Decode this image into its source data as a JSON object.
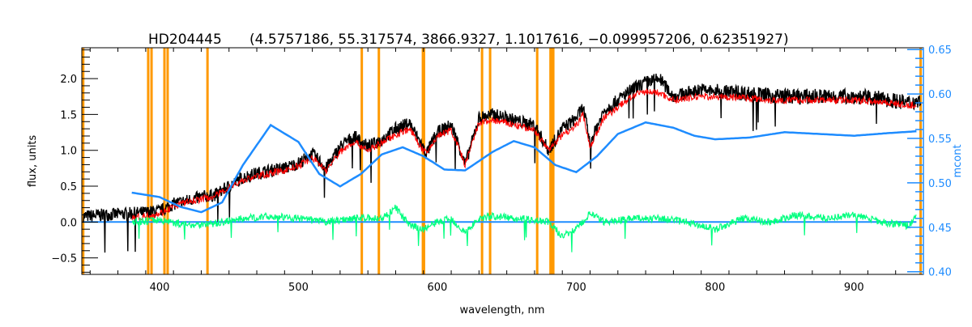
{
  "chart_data": {
    "type": "line",
    "title_star": "HD204445",
    "title_params": "(4.5757186, 55.317574, 3866.9327, 1.1017616, −0.099957206, 0.62351927)",
    "xlabel": "wavelength, nm",
    "ylabel": "flux, units",
    "y2label": "mcont",
    "xlim": [
      344,
      950
    ],
    "ylim": [
      -0.73,
      2.43
    ],
    "y2lim": [
      0.397,
      0.652
    ],
    "xticks": [
      400,
      500,
      600,
      700,
      800,
      900
    ],
    "yticks": [
      -0.5,
      0.0,
      0.5,
      1.0,
      1.5,
      2.0
    ],
    "ytick_labels": [
      "−0.5",
      "0.0",
      "0.5",
      "1.0",
      "1.5",
      "2.0"
    ],
    "y2ticks": [
      0.4,
      0.45,
      0.5,
      0.55,
      0.6,
      0.65
    ],
    "y2tick_labels": [
      "0.40",
      "0.45",
      "0.50",
      "0.55",
      "0.60",
      "0.65"
    ],
    "masked_lines_nm": [
      345,
      391.8,
      394.2,
      403.5,
      405.8,
      434.5,
      545.6,
      557.9,
      589.6,
      590.4,
      632.2,
      638.0,
      671.9,
      681.5,
      682.5,
      683.5,
      948
    ],
    "colors": {
      "observed": "#000000",
      "model": "#ff0000",
      "continuum": "#1e8cff",
      "residual": "#00ff7f",
      "mask": "#ff9900"
    },
    "series": [
      {
        "name": "observed",
        "axis": "left",
        "x": [
          345,
          360,
          380,
          400,
          410,
          420,
          430,
          440,
          450,
          460,
          470,
          480,
          490,
          500,
          510,
          520,
          530,
          540,
          550,
          560,
          570,
          580,
          588,
          592,
          600,
          610,
          615,
          620,
          630,
          640,
          650,
          660,
          670,
          680,
          690,
          700,
          705,
          710,
          720,
          730,
          740,
          750,
          760,
          770,
          780,
          790,
          800,
          820,
          840,
          860,
          880,
          900,
          920,
          940,
          948
        ],
        "y": [
          0.08,
          0.1,
          0.12,
          0.15,
          0.25,
          0.3,
          0.35,
          0.38,
          0.5,
          0.62,
          0.68,
          0.72,
          0.75,
          0.82,
          0.95,
          0.75,
          1.05,
          1.2,
          1.05,
          1.15,
          1.3,
          1.38,
          1.1,
          0.95,
          1.25,
          1.35,
          1.1,
          0.8,
          1.45,
          1.5,
          1.45,
          1.4,
          1.35,
          1.0,
          1.3,
          1.45,
          1.6,
          1.1,
          1.55,
          1.7,
          1.85,
          1.95,
          2.0,
          1.75,
          1.8,
          1.85,
          1.82,
          1.8,
          1.76,
          1.75,
          1.75,
          1.75,
          1.72,
          1.66,
          1.7
        ]
      },
      {
        "name": "model",
        "axis": "left",
        "x": [
          380,
          400,
          410,
          420,
          430,
          440,
          450,
          460,
          470,
          480,
          490,
          500,
          510,
          520,
          530,
          540,
          550,
          560,
          570,
          580,
          588,
          592,
          600,
          610,
          615,
          620,
          630,
          640,
          650,
          660,
          670,
          680,
          690,
          700,
          705,
          710,
          720,
          730,
          740,
          750,
          760,
          770,
          780,
          790,
          800,
          820,
          840,
          860,
          880,
          900,
          920,
          940,
          945
        ],
        "y": [
          0.05,
          0.12,
          0.22,
          0.28,
          0.32,
          0.36,
          0.48,
          0.58,
          0.64,
          0.68,
          0.72,
          0.78,
          0.9,
          0.72,
          0.98,
          1.12,
          1.0,
          1.1,
          1.22,
          1.3,
          1.05,
          0.95,
          1.2,
          1.28,
          1.05,
          0.8,
          1.38,
          1.42,
          1.38,
          1.33,
          1.28,
          1.0,
          1.22,
          1.35,
          1.5,
          1.05,
          1.45,
          1.6,
          1.75,
          1.82,
          1.8,
          1.7,
          1.72,
          1.76,
          1.74,
          1.74,
          1.7,
          1.7,
          1.7,
          1.7,
          1.68,
          1.62,
          1.65
        ]
      },
      {
        "name": "continuum",
        "axis": "right",
        "x": [
          380,
          400,
          415,
          430,
          445,
          460,
          480,
          500,
          515,
          530,
          545,
          560,
          575,
          590,
          605,
          620,
          640,
          655,
          670,
          685,
          700,
          715,
          730,
          750,
          770,
          785,
          800,
          825,
          850,
          875,
          900,
          925,
          945
        ],
        "y": [
          0.489,
          0.484,
          0.473,
          0.467,
          0.478,
          0.52,
          0.565,
          0.546,
          0.51,
          0.496,
          0.51,
          0.532,
          0.54,
          0.53,
          0.515,
          0.514,
          0.535,
          0.547,
          0.54,
          0.52,
          0.512,
          0.53,
          0.555,
          0.568,
          0.562,
          0.553,
          0.549,
          0.551,
          0.557,
          0.555,
          0.553,
          0.556,
          0.558
        ]
      },
      {
        "name": "zero",
        "axis": "left",
        "x": [
          345,
          945
        ],
        "y": [
          0.0,
          0.0
        ]
      },
      {
        "name": "residual",
        "axis": "left",
        "x": [
          380,
          400,
          420,
          440,
          460,
          480,
          500,
          520,
          540,
          560,
          570,
          580,
          590,
          600,
          610,
          620,
          630,
          640,
          660,
          680,
          690,
          700,
          710,
          720,
          740,
          760,
          780,
          800,
          820,
          840,
          860,
          880,
          900,
          920,
          940,
          945
        ],
        "y": [
          0.0,
          0.03,
          -0.04,
          -0.02,
          0.05,
          0.08,
          0.05,
          0.0,
          0.06,
          0.05,
          0.2,
          -0.05,
          -0.1,
          0.0,
          0.05,
          -0.15,
          0.05,
          0.08,
          0.05,
          0.0,
          -0.2,
          -0.1,
          0.12,
          0.0,
          0.05,
          0.05,
          0.0,
          -0.1,
          0.05,
          0.0,
          0.1,
          0.05,
          0.1,
          0.0,
          -0.05,
          0.1
        ]
      }
    ]
  }
}
